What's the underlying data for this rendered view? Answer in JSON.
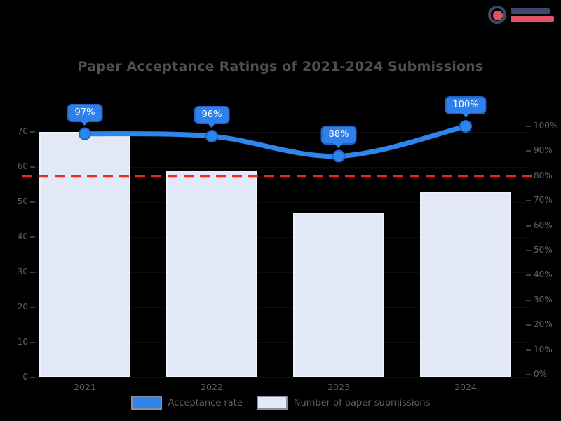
{
  "logo": {
    "navy_color": "#3b4a68",
    "red_color": "#e34f63"
  },
  "chart_data": {
    "type": "bar+line combo",
    "title": "Paper Acceptance Ratings of 2021-2024 Submissions",
    "background": "#000000",
    "categories": [
      "2021",
      "2022",
      "2023",
      "2024"
    ],
    "series": [
      {
        "name": "Acceptance rate",
        "type": "line",
        "axis": "right",
        "values": [
          97,
          96,
          88,
          100
        ],
        "point_labels": [
          "97%",
          "96%",
          "88%",
          "100%"
        ],
        "color": "#2e86ec",
        "marker": "circle",
        "label_bubble_color": "#2f80ed"
      },
      {
        "name": "Number of paper submissions",
        "type": "bar",
        "axis": "left",
        "values": [
          70,
          59,
          47,
          53
        ],
        "color": "#e2e8f7"
      }
    ],
    "threshold_line": {
      "axis": "right",
      "value": 80,
      "color": "#e8291c",
      "style": "dashed"
    },
    "left_axis": {
      "min": 0,
      "max": 70,
      "ticks": [
        "70",
        "60",
        "50",
        "40",
        "30",
        "20",
        "10",
        "0"
      ]
    },
    "right_axis": {
      "min": 0,
      "max": 100,
      "ticks": [
        "100%",
        "90%",
        "80%",
        "70%",
        "60%",
        "50%",
        "40%",
        "30%",
        "20%",
        "10%",
        "0%"
      ]
    },
    "legend": [
      {
        "label": "Acceptance rate",
        "color": "#2e86ec",
        "border": "#8b8f99"
      },
      {
        "label": "Number of paper submissions",
        "color": "#e2e8f7",
        "border": "#8b8f99"
      }
    ],
    "grid": "off",
    "legend_position": "bottom"
  }
}
